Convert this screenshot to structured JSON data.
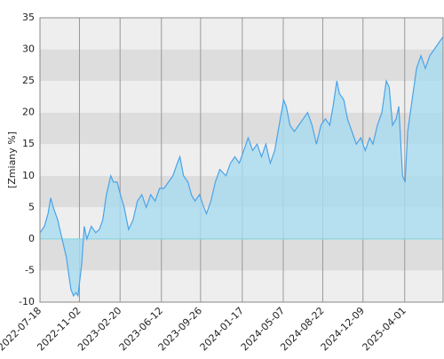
{
  "chart_data": {
    "type": "area",
    "ylabel": "[Zmiany %]",
    "line_color": "#4aa3e8",
    "fill_color": "#a8dcf0",
    "zero_line_color": "#7fd4e0",
    "band_colors": [
      "#eeeeee",
      "#dddddd"
    ],
    "grid": true,
    "xlim": [
      "2022-07-18",
      "2025-07-14"
    ],
    "xticks": [
      "2022-07-18",
      "2022-11-02",
      "2023-02-20",
      "2023-06-12",
      "2023-09-26",
      "2024-01-17",
      "2024-05-07",
      "2024-08-22",
      "2024-12-09",
      "2025-04-01"
    ],
    "ylim": [
      -10,
      35
    ],
    "yticks": [
      -10,
      -5,
      0,
      5,
      10,
      15,
      20,
      25,
      30,
      35
    ],
    "x": [
      "2022-07-18",
      "2022-07-30",
      "2022-08-09",
      "2022-08-16",
      "2022-08-23",
      "2022-09-04",
      "2022-09-16",
      "2022-09-28",
      "2022-10-05",
      "2022-10-10",
      "2022-10-17",
      "2022-10-24",
      "2022-10-29",
      "2022-11-08",
      "2022-11-15",
      "2022-11-22",
      "2022-12-04",
      "2022-12-16",
      "2022-12-26",
      "2023-01-04",
      "2023-01-14",
      "2023-01-26",
      "2023-02-02",
      "2023-02-12",
      "2023-02-21",
      "2023-03-03",
      "2023-03-15",
      "2023-03-27",
      "2023-04-08",
      "2023-04-20",
      "2023-05-02",
      "2023-05-14",
      "2023-05-26",
      "2023-06-07",
      "2023-06-19",
      "2023-07-01",
      "2023-07-13",
      "2023-07-25",
      "2023-08-01",
      "2023-08-11",
      "2023-08-23",
      "2023-09-01",
      "2023-09-11",
      "2023-09-23",
      "2023-10-05",
      "2023-10-12",
      "2023-10-24",
      "2023-11-05",
      "2023-11-17",
      "2023-12-04",
      "2023-12-16",
      "2023-12-28",
      "2024-01-09",
      "2024-01-21",
      "2024-02-02",
      "2024-02-14",
      "2024-02-26",
      "2024-03-09",
      "2024-03-21",
      "2024-04-02",
      "2024-04-14",
      "2024-04-26",
      "2024-05-08",
      "2024-05-15",
      "2024-05-25",
      "2024-06-06",
      "2024-06-18",
      "2024-06-30",
      "2024-07-12",
      "2024-07-24",
      "2024-08-05",
      "2024-08-17",
      "2024-08-29",
      "2024-09-10",
      "2024-09-19",
      "2024-09-29",
      "2024-10-06",
      "2024-10-18",
      "2024-10-28",
      "2024-11-09",
      "2024-11-21",
      "2024-12-03",
      "2024-12-15",
      "2024-12-27",
      "2025-01-05",
      "2025-01-17",
      "2025-01-29",
      "2025-02-10",
      "2025-02-18",
      "2025-02-27",
      "2025-03-09",
      "2025-03-16",
      "2025-03-26",
      "2025-04-02",
      "2025-04-09",
      "2025-04-21",
      "2025-05-03",
      "2025-05-15",
      "2025-05-27",
      "2025-06-08",
      "2025-06-20",
      "2025-07-02",
      "2025-07-14"
    ],
    "values": [
      1,
      2,
      4,
      6.5,
      5,
      3,
      0,
      -3,
      -6,
      -8,
      -9,
      -8.5,
      -9,
      -4,
      2,
      0,
      2,
      1,
      1.5,
      3,
      7,
      10,
      9,
      9,
      7,
      5,
      1.5,
      3,
      6,
      7,
      5,
      7,
      6,
      8,
      8,
      9,
      10,
      12,
      13,
      10,
      9,
      7,
      6,
      7,
      5,
      4,
      6,
      9,
      11,
      10,
      12,
      13,
      12,
      14,
      16,
      14,
      15,
      13,
      15,
      12,
      14,
      18,
      22,
      21,
      18,
      17,
      18,
      19,
      20,
      18,
      15,
      18,
      19,
      18,
      21,
      25,
      23,
      22,
      19,
      17,
      15,
      16,
      14,
      16,
      15,
      18,
      20,
      25,
      24,
      18,
      19,
      21,
      10,
      9,
      17,
      22,
      27,
      29,
      27,
      29,
      30,
      31,
      32
    ]
  }
}
